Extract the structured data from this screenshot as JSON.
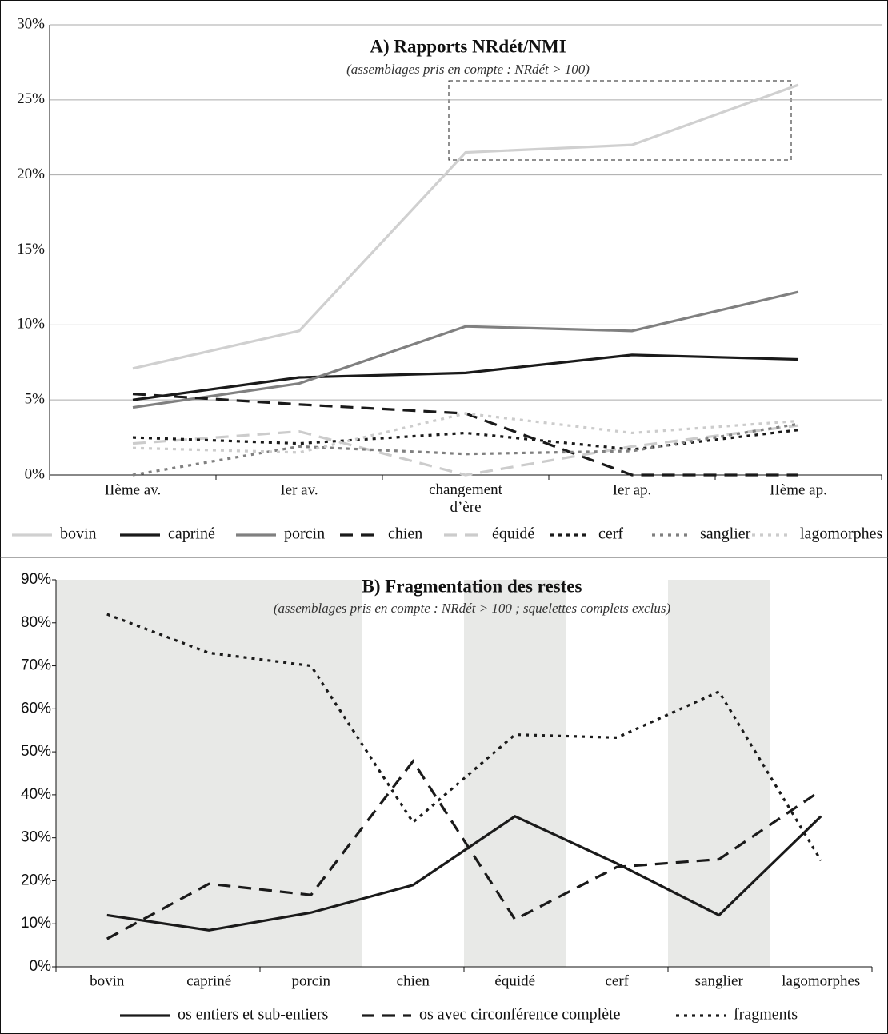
{
  "chart_data": [
    {
      "type": "line",
      "title": "A) Rapports NRdét/NMI",
      "subtitle": "(assemblages pris en compte : NRdét > 100)",
      "categories": [
        "IIème av.",
        "Ier av.",
        "changement d’ère",
        "Ier ap.",
        "IIème ap."
      ],
      "series": [
        {
          "name": "bovin",
          "color": "#d0d0d0",
          "dash": "solid",
          "values": [
            7.1,
            9.6,
            21.5,
            22.0,
            26.0
          ]
        },
        {
          "name": "capriné",
          "color": "#1a1a1a",
          "dash": "solid",
          "values": [
            5.0,
            6.5,
            6.8,
            8.0,
            7.7
          ]
        },
        {
          "name": "porcin",
          "color": "#808080",
          "dash": "solid",
          "values": [
            4.5,
            6.1,
            9.9,
            9.6,
            12.2
          ]
        },
        {
          "name": "chien",
          "color": "#1a1a1a",
          "dash": "dashed",
          "values": [
            5.4,
            4.7,
            4.1,
            0,
            0
          ]
        },
        {
          "name": "équidé",
          "color": "#cccccc",
          "dash": "dashed",
          "values": [
            2.1,
            2.9,
            0,
            1.9,
            3.3
          ]
        },
        {
          "name": "cerf",
          "color": "#1a1a1a",
          "dash": "dotted",
          "values": [
            2.5,
            2.1,
            2.8,
            1.7,
            3.0
          ]
        },
        {
          "name": "sanglier",
          "color": "#808080",
          "dash": "dotted",
          "values": [
            0,
            1.9,
            1.4,
            1.6,
            3.4
          ]
        },
        {
          "name": "lagomorphes",
          "color": "#cccccc",
          "dash": "dotted",
          "values": [
            1.8,
            1.5,
            4.1,
            2.8,
            3.6
          ]
        }
      ],
      "ylim": [
        0,
        30
      ],
      "yticks": [
        {
          "value": 0,
          "label": "0%"
        },
        {
          "value": 5,
          "label": "5%"
        },
        {
          "value": 10,
          "label": "10%"
        },
        {
          "value": 15,
          "label": "15%"
        },
        {
          "value": 20,
          "label": "20%"
        },
        {
          "value": 25,
          "label": "25%"
        },
        {
          "value": 30,
          "label": "30%"
        }
      ],
      "grid": true,
      "legend": "bottom"
    },
    {
      "type": "line",
      "title": "B) Fragmentation des restes",
      "subtitle": "(assemblages pris en compte : NRdét > 100 ; squelettes complets exclus)",
      "categories": [
        "bovin",
        "capriné",
        "porcin",
        "chien",
        "équidé",
        "cerf",
        "sanglier",
        "lagomorphes"
      ],
      "shaded": [
        true,
        true,
        true,
        false,
        true,
        false,
        true,
        false
      ],
      "series": [
        {
          "name": "os entiers et sub-entiers",
          "color": "#1a1a1a",
          "dash": "solid",
          "values": [
            12,
            8.5,
            12.6,
            19,
            35,
            24,
            12,
            35
          ]
        },
        {
          "name": "os avec circonférence complète",
          "color": "#1a1a1a",
          "dash": "dashed",
          "values": [
            6.5,
            19.3,
            16.7,
            47.8,
            11,
            23.2,
            25,
            41
          ]
        },
        {
          "name": "fragments",
          "color": "#1a1a1a",
          "dash": "dotted",
          "values": [
            82,
            73,
            70,
            33.6,
            54,
            53.3,
            64,
            24.7
          ]
        }
      ],
      "ylim": [
        0,
        90
      ],
      "yticks": [
        {
          "value": 0,
          "label": "0%"
        },
        {
          "value": 10,
          "label": "10%"
        },
        {
          "value": 20,
          "label": "20%"
        },
        {
          "value": 30,
          "label": "30%"
        },
        {
          "value": 40,
          "label": "40%"
        },
        {
          "value": 50,
          "label": "50%"
        },
        {
          "value": 60,
          "label": "60%"
        },
        {
          "value": 70,
          "label": "70%"
        },
        {
          "value": 80,
          "label": "80%"
        },
        {
          "value": 90,
          "label": "90%"
        }
      ],
      "grid": false,
      "legend": "bottom"
    }
  ]
}
